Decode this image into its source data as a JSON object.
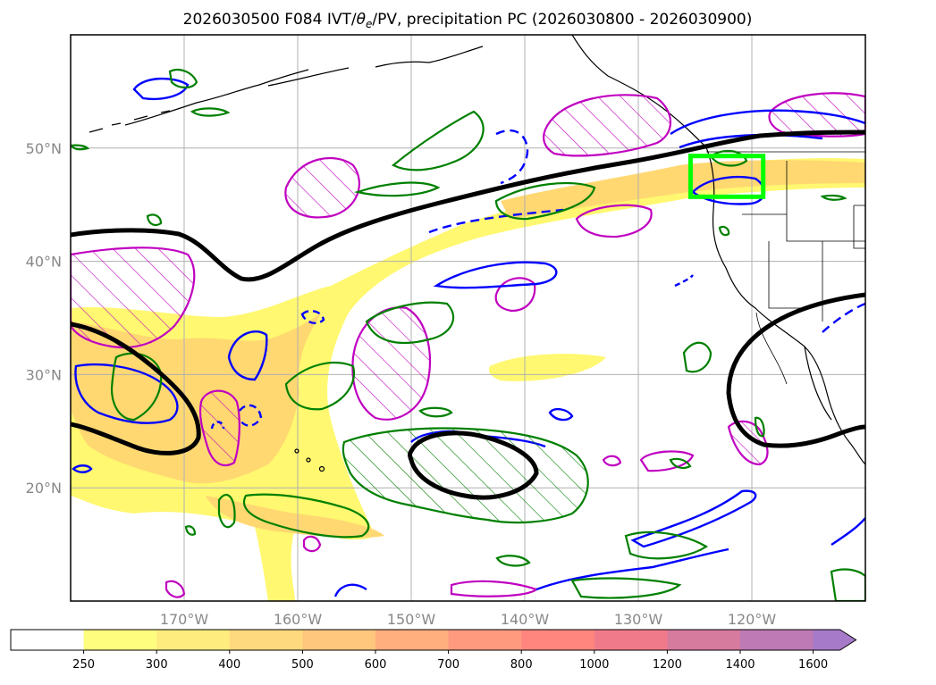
{
  "map": {
    "title": "2026030500 F084 IVT/θe/PV, precipitation PC (2026030800 - 2026030900)",
    "title_parts": {
      "prefix": "2026030500 F084 IVT/",
      "theta": "θ",
      "sub": "e",
      "suffix": "/PV, precipitation PC (2026030800 - 2026030900)"
    },
    "extent": {
      "lon_min": -180,
      "lon_max": -110,
      "lat_min": 10,
      "lat_max": 60
    },
    "lat_labels": [
      {
        "lat": 50,
        "label": "50°N"
      },
      {
        "lat": 40,
        "label": "40°N"
      },
      {
        "lat": 30,
        "label": "30°N"
      },
      {
        "lat": 20,
        "label": "20°N"
      }
    ],
    "lon_labels": [
      {
        "lon": -170,
        "label": "170°W"
      },
      {
        "lon": -160,
        "label": "160°W"
      },
      {
        "lon": -150,
        "label": "150°W"
      },
      {
        "lon": -140,
        "label": "140°W"
      },
      {
        "lon": -130,
        "label": "130°W"
      },
      {
        "lon": -120,
        "label": "120°W"
      }
    ],
    "highlight_box": {
      "lon_min": -125.4,
      "lon_max": -119.0,
      "lat_min": 45.7,
      "lat_max": 49.3,
      "color": "#00ff00"
    }
  },
  "colorbar": {
    "ticks": [
      "250",
      "300",
      "400",
      "500",
      "600",
      "700",
      "800",
      "1000",
      "1200",
      "1400",
      "1600"
    ],
    "colors": [
      "#ffffff",
      "#fffd7e",
      "#ffec7e",
      "#ffd97e",
      "#ffc77e",
      "#ffae7e",
      "#ff9a7e",
      "#ff867e",
      "#f07a8a",
      "#d67a9e",
      "#be7ab4",
      "#a67ac8"
    ],
    "extend": "max"
  },
  "colors": {
    "ivt_light": "#fff870",
    "ivt_mid": "#ffd872",
    "theta_e": "#000000",
    "pv_positive": "#0000ff",
    "precip": "#008000",
    "pv_region": "#c000c0",
    "coast": "#000000",
    "grid": "#b0b0b0"
  }
}
